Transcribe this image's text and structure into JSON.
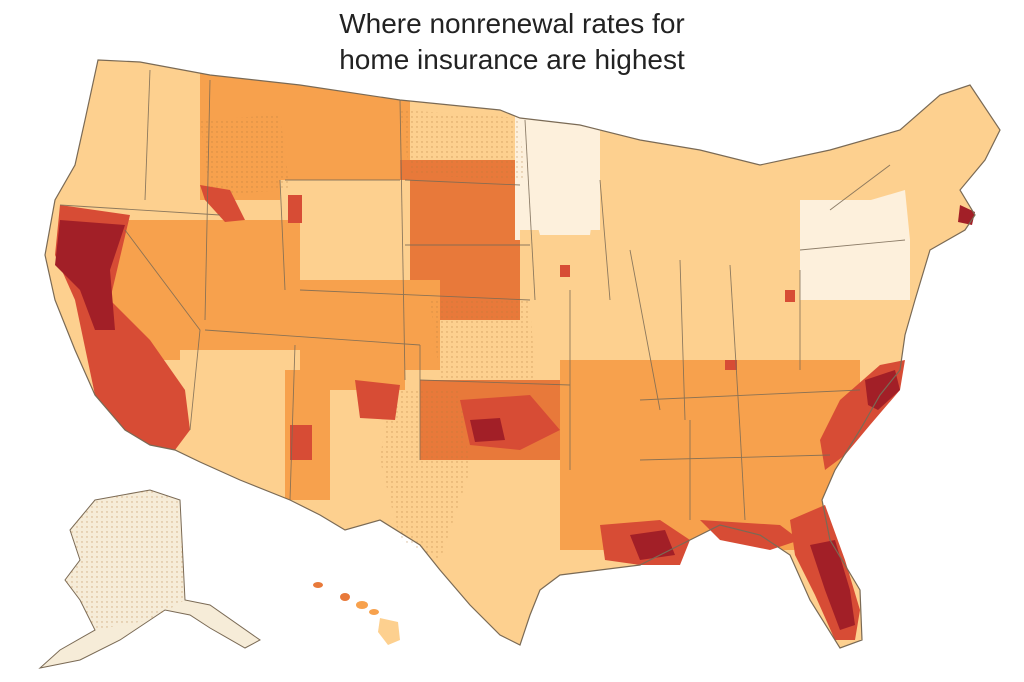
{
  "title_lines": [
    "Where nonrenewal rates for",
    "home insurance are highest"
  ],
  "legend": {
    "shown": false
  },
  "color_scale": {
    "lowest": "#fdf0dc",
    "low": "#fdd08f",
    "medium": "#f7a14d",
    "high": "#e8793a",
    "very_high": "#d74c35",
    "highest": "#a21f27",
    "state_border": "#7a6a55",
    "stipple": "#b07a3a",
    "alaska_fill": "#f6ecd8"
  },
  "regions": [
    {
      "name": "pacific-northwest",
      "level": "low"
    },
    {
      "name": "california-north",
      "level": "highest"
    },
    {
      "name": "california-south",
      "level": "very_high"
    },
    {
      "name": "nevada",
      "level": "medium"
    },
    {
      "name": "southwest",
      "level": "low"
    },
    {
      "name": "mountain-west",
      "level": "medium"
    },
    {
      "name": "great-plains",
      "level": "high"
    },
    {
      "name": "texas",
      "level": "low"
    },
    {
      "name": "upper-midwest",
      "level": "lowest"
    },
    {
      "name": "midwest",
      "level": "low"
    },
    {
      "name": "southeast",
      "level": "medium"
    },
    {
      "name": "carolinas-coast",
      "level": "very_high"
    },
    {
      "name": "florida",
      "level": "highest"
    },
    {
      "name": "gulf-coast",
      "level": "very_high"
    },
    {
      "name": "northeast",
      "level": "lowest"
    },
    {
      "name": "new-england",
      "level": "low"
    },
    {
      "name": "alaska",
      "level": "lowest"
    },
    {
      "name": "hawaii",
      "level": "medium"
    }
  ]
}
